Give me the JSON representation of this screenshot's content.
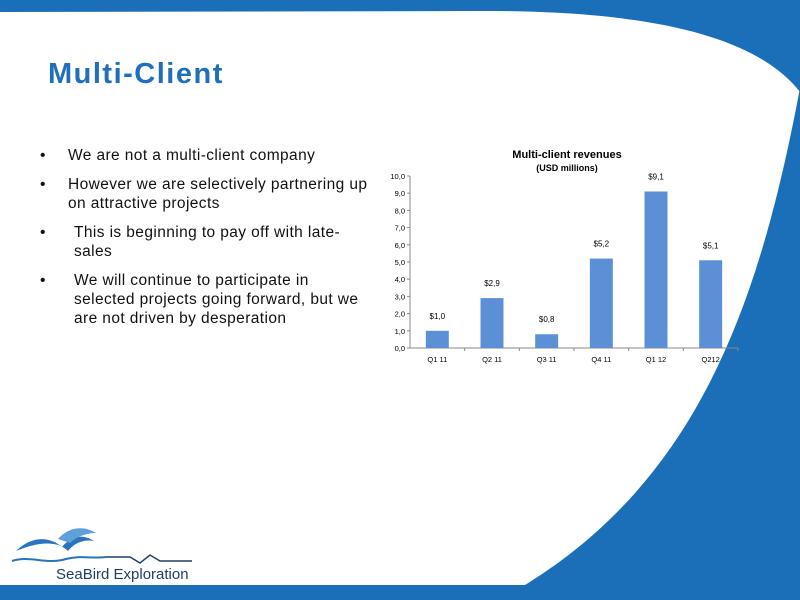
{
  "slide": {
    "title": "Multi-Client",
    "bullets": [
      "We are not a multi-client company",
      "However we are selectively partnering up on attractive projects",
      "This is beginning to pay off with late-sales",
      "We will continue to participate in selected projects going forward, but we are not driven by desperation"
    ],
    "bullet_symbol": "•",
    "brand_color": "#1a6fb8"
  },
  "logo": {
    "text": "SeaBird Exploration",
    "icon": "seagull-wave-icon"
  },
  "chart_data": {
    "type": "bar",
    "title": "Multi-client revenues",
    "subtitle": "(USD millions)",
    "categories": [
      "Q1 11",
      "Q2 11",
      "Q3 11",
      "Q4 11",
      "Q1 12",
      "Q212"
    ],
    "values": [
      1.0,
      2.9,
      0.8,
      5.2,
      9.1,
      5.1
    ],
    "data_labels": [
      "$1,0",
      "$2,9",
      "$0,8",
      "$5,2",
      "$9,1",
      "$5,1"
    ],
    "ylim": [
      0,
      10
    ],
    "y_ticks": [
      "0,0",
      "1,0",
      "2,0",
      "3,0",
      "4,0",
      "5,0",
      "6,0",
      "7,0",
      "8,0",
      "9,0",
      "10,0"
    ],
    "bar_color": "#5b8fd6",
    "grid": false,
    "xlabel": "",
    "ylabel": ""
  }
}
